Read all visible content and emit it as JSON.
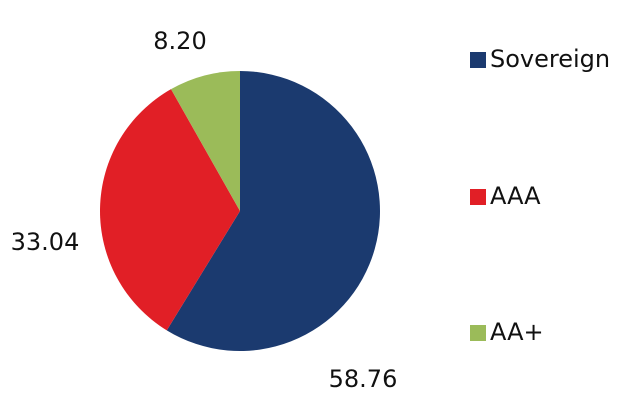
{
  "chart_data": {
    "type": "pie",
    "categories": [
      "Sovereign",
      "AAA",
      "AA+"
    ],
    "values": [
      58.76,
      33.04,
      8.2
    ],
    "value_labels": [
      "58.76",
      "33.04",
      "8.20"
    ],
    "colors": [
      "#1b3a6f",
      "#e11f26",
      "#9bbb59"
    ],
    "legend": "right"
  }
}
